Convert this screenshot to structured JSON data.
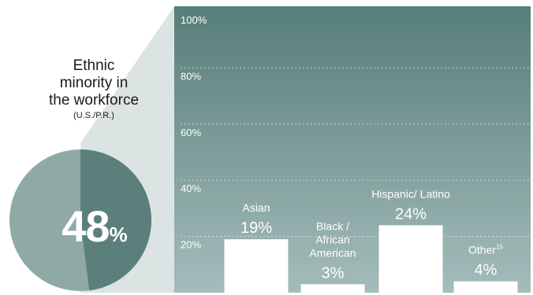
{
  "pie": {
    "title_lines": [
      "Ethnic",
      "minority in",
      "the workforce"
    ],
    "subtitle": "(U.S./P.R.)",
    "value_number": "48",
    "value_unit": "%",
    "value": 48
  },
  "colors": {
    "panel_top": "#577e79",
    "panel_bottom": "#a4bcbb",
    "pie_highlight": "#5b807b",
    "pie_rest": "#8fa9a7",
    "callout": "#dbe4e3",
    "bar": "#ffffff"
  },
  "chart_data": {
    "type": "bar",
    "ylim": [
      0,
      100
    ],
    "yticks": [
      20,
      40,
      60,
      80,
      100
    ],
    "ytick_labels": [
      "20%",
      "40%",
      "60%",
      "80%",
      "100%"
    ],
    "grid": true,
    "categories": [
      {
        "name_lines": [
          "Asian"
        ],
        "label": "19%",
        "value": 19
      },
      {
        "name_lines": [
          "Black /",
          "African",
          "American"
        ],
        "label": "3%",
        "value": 3
      },
      {
        "name_lines": [
          "Hispanic/ Latino"
        ],
        "label": "24%",
        "value": 24
      },
      {
        "name_lines": [
          "Other"
        ],
        "footnote": "15",
        "label": "4%",
        "value": 4
      }
    ]
  }
}
